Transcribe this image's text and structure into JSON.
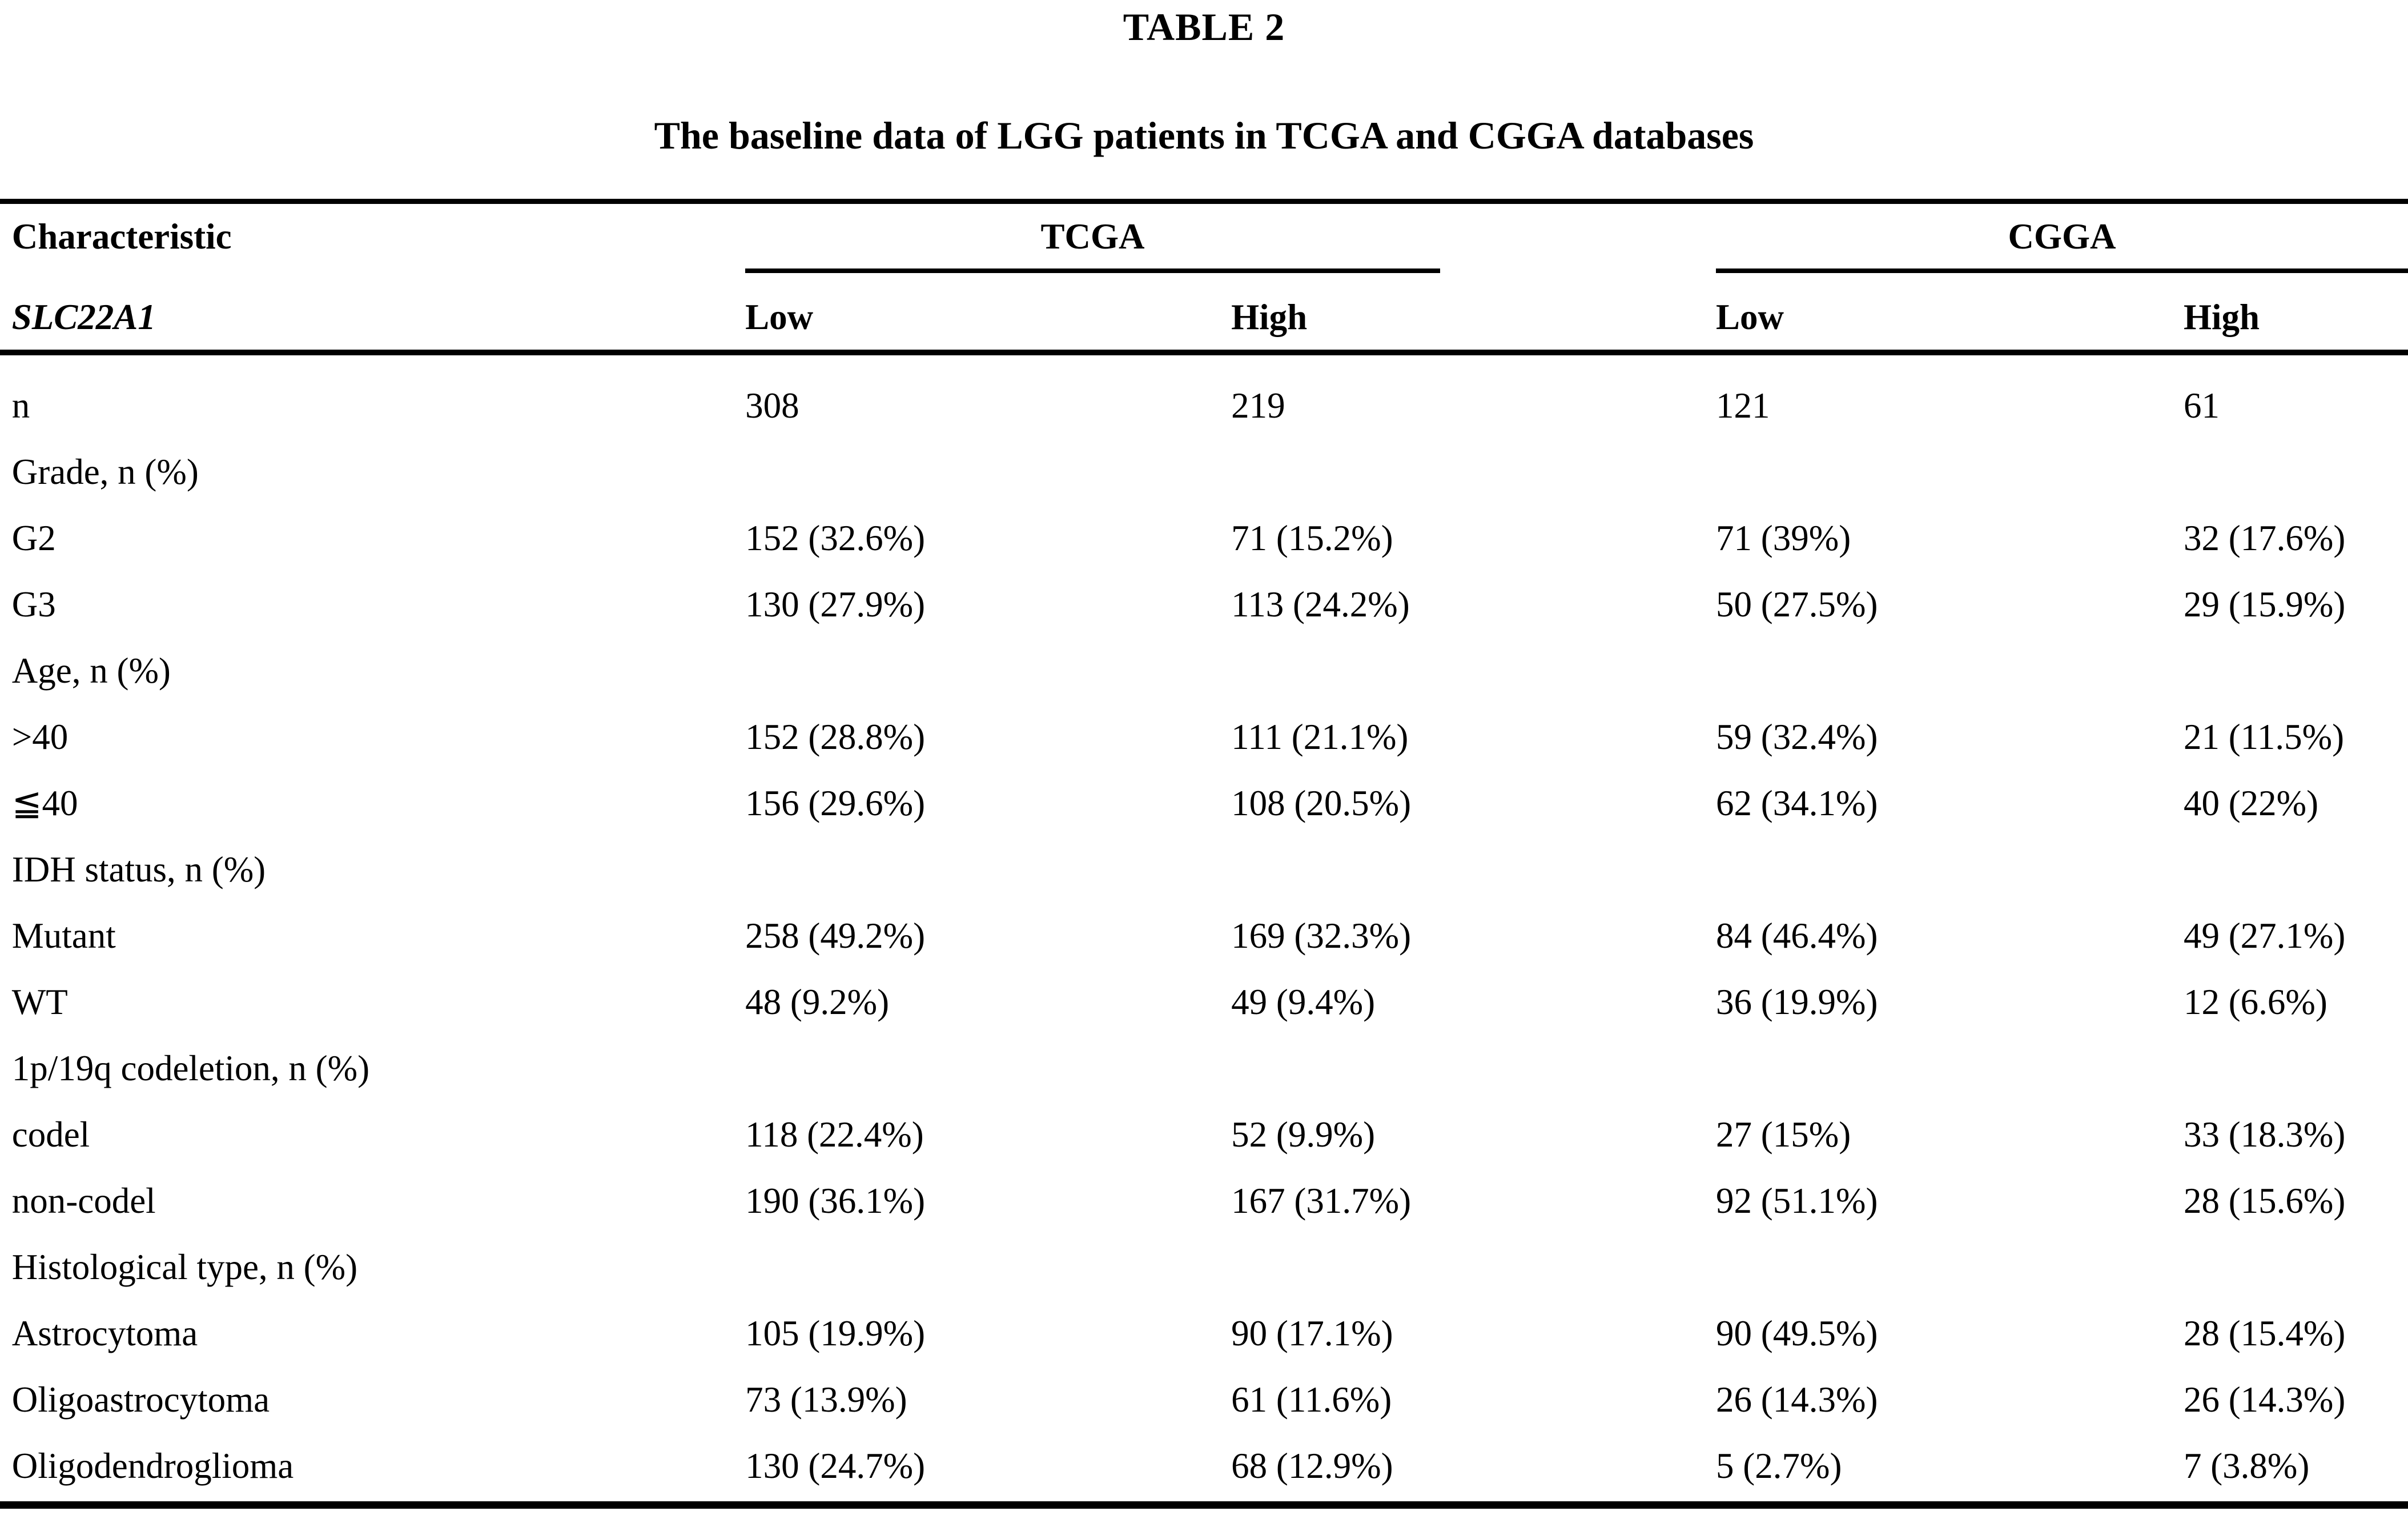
{
  "title": "TABLE 2",
  "subtitle": "The baseline data of LGG patients in TCGA and CGGA databases",
  "colors": {
    "text": "#000000",
    "background": "#ffffff",
    "rule": "#000000"
  },
  "table": {
    "column_headers": {
      "characteristic": "Characteristic",
      "gene": "SLC22A1",
      "tcga": "TCGA",
      "cgga": "CGGA",
      "tcga_low": "Low",
      "tcga_high": "High",
      "cgga_low": "Low",
      "cgga_high": "High"
    },
    "rows": [
      {
        "label": "n",
        "cells": [
          "308",
          "219",
          "121",
          "61"
        ]
      },
      {
        "label": "Grade, n (%)",
        "cells": [
          "",
          "",
          "",
          ""
        ]
      },
      {
        "label": "G2",
        "cells": [
          "152 (32.6%)",
          "71 (15.2%)",
          "71 (39%)",
          "32 (17.6%)"
        ]
      },
      {
        "label": "G3",
        "cells": [
          "130 (27.9%)",
          "113 (24.2%)",
          "50 (27.5%)",
          "29 (15.9%)"
        ]
      },
      {
        "label": "Age, n (%)",
        "cells": [
          "",
          "",
          "",
          ""
        ]
      },
      {
        "label": ">40",
        "cells": [
          "152 (28.8%)",
          "111 (21.1%)",
          "59 (32.4%)",
          "21 (11.5%)"
        ]
      },
      {
        "label": "≦40",
        "cells": [
          "156 (29.6%)",
          "108 (20.5%)",
          "62 (34.1%)",
          "40 (22%)"
        ]
      },
      {
        "label": "IDH status, n (%)",
        "cells": [
          "",
          "",
          "",
          ""
        ]
      },
      {
        "label": "Mutant",
        "cells": [
          "258 (49.2%)",
          "169 (32.3%)",
          "84 (46.4%)",
          "49 (27.1%)"
        ]
      },
      {
        "label": "WT",
        "cells": [
          "48 (9.2%)",
          "49 (9.4%)",
          "36 (19.9%)",
          "12 (6.6%)"
        ]
      },
      {
        "label": "1p/19q codeletion, n (%)",
        "cells": [
          "",
          "",
          "",
          ""
        ]
      },
      {
        "label": "codel",
        "cells": [
          "118 (22.4%)",
          "52 (9.9%)",
          "27 (15%)",
          "33 (18.3%)"
        ]
      },
      {
        "label": "non-codel",
        "cells": [
          "190 (36.1%)",
          "167 (31.7%)",
          "92 (51.1%)",
          "28 (15.6%)"
        ]
      },
      {
        "label": "Histological type, n (%)",
        "cells": [
          "",
          "",
          "",
          ""
        ]
      },
      {
        "label": "Astrocytoma",
        "cells": [
          "105 (19.9%)",
          "90 (17.1%)",
          "90 (49.5%)",
          "28 (15.4%)"
        ]
      },
      {
        "label": "Oligoastrocytoma",
        "cells": [
          "73 (13.9%)",
          "61 (11.6%)",
          "26 (14.3%)",
          "26 (14.3%)"
        ]
      },
      {
        "label": "Oligodendroglioma",
        "cells": [
          "130 (24.7%)",
          "68 (12.9%)",
          "5 (2.7%)",
          "7 (3.8%)"
        ]
      }
    ]
  }
}
